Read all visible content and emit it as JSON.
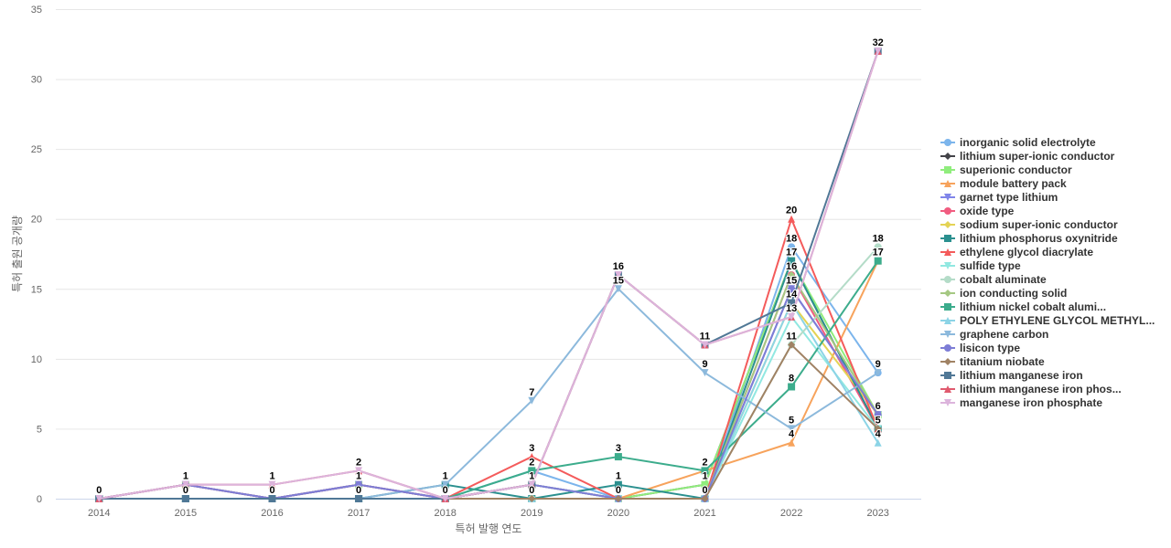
{
  "chart_data": {
    "type": "line",
    "title": "",
    "xlabel": "특허 발행 연도",
    "ylabel": "특허 출원 공개량",
    "ylim": [
      0,
      35
    ],
    "y_ticks": [
      0,
      5,
      10,
      15,
      20,
      25,
      30,
      35
    ],
    "grid": true,
    "legend_position": "right",
    "categories": [
      "2014",
      "2015",
      "2016",
      "2017",
      "2018",
      "2019",
      "2020",
      "2021",
      "2022",
      "2023"
    ],
    "series": [
      {
        "name": "inorganic solid electrolyte",
        "color": "#7cb5ec",
        "marker": "circle",
        "values": [
          0,
          1,
          0,
          1,
          0,
          2,
          0,
          0,
          18,
          9
        ]
      },
      {
        "name": "lithium super-ionic conductor",
        "color": "#434348",
        "marker": "diamond",
        "values": [
          0,
          1,
          0,
          1,
          0,
          1,
          0,
          1,
          17,
          5
        ]
      },
      {
        "name": "superionic conductor",
        "color": "#90ed7d",
        "marker": "square",
        "values": [
          0,
          1,
          0,
          1,
          0,
          1,
          0,
          1,
          17,
          6
        ]
      },
      {
        "name": "module battery pack",
        "color": "#f7a35c",
        "marker": "triangle",
        "values": [
          0,
          0,
          0,
          0,
          0,
          0,
          0,
          2,
          4,
          17
        ]
      },
      {
        "name": "garnet type lithium",
        "color": "#8085e9",
        "marker": "triangle-down",
        "values": [
          0,
          1,
          0,
          1,
          0,
          1,
          0,
          0,
          15,
          6
        ]
      },
      {
        "name": "oxide type",
        "color": "#f15c80",
        "marker": "circle",
        "values": [
          0,
          1,
          0,
          1,
          0,
          1,
          0,
          0,
          16,
          5
        ]
      },
      {
        "name": "sodium super-ionic conductor",
        "color": "#e4d354",
        "marker": "diamond",
        "values": [
          0,
          0,
          0,
          0,
          0,
          0,
          0,
          0,
          14,
          6
        ]
      },
      {
        "name": "lithium phosphorus oxynitride",
        "color": "#2b908f",
        "marker": "square",
        "values": [
          0,
          0,
          0,
          0,
          1,
          0,
          1,
          0,
          17,
          5
        ]
      },
      {
        "name": "ethylene glycol diacrylate",
        "color": "#f45b5b",
        "marker": "triangle",
        "values": [
          0,
          0,
          0,
          0,
          0,
          3,
          0,
          0,
          20,
          5
        ]
      },
      {
        "name": "sulfide type",
        "color": "#91e8e1",
        "marker": "triangle-down",
        "values": [
          0,
          0,
          0,
          0,
          0,
          1,
          0,
          0,
          13,
          5
        ]
      },
      {
        "name": "cobalt aluminate",
        "color": "#b4dcc8",
        "marker": "circle",
        "values": [
          0,
          0,
          0,
          0,
          0,
          0,
          0,
          0,
          11,
          18
        ]
      },
      {
        "name": "ion conducting solid",
        "color": "#a5c882",
        "marker": "diamond",
        "values": [
          0,
          0,
          0,
          0,
          0,
          0,
          0,
          0,
          16,
          6
        ]
      },
      {
        "name": "lithium nickel cobalt alumi...",
        "color": "#3cac8c",
        "marker": "square",
        "values": [
          0,
          0,
          0,
          0,
          0,
          2,
          3,
          2,
          8,
          17
        ]
      },
      {
        "name": "POLY ETHYLENE GLYCOL METHYL...",
        "color": "#8cd4e6",
        "marker": "triangle",
        "values": [
          0,
          0,
          0,
          0,
          0,
          0,
          0,
          0,
          14,
          4
        ]
      },
      {
        "name": "graphene carbon",
        "color": "#8cb9dc",
        "marker": "triangle-down",
        "values": [
          0,
          0,
          0,
          0,
          1,
          7,
          15,
          9,
          5,
          9
        ]
      },
      {
        "name": "lisicon type",
        "color": "#7d7dd6",
        "marker": "circle",
        "values": [
          0,
          1,
          0,
          1,
          0,
          1,
          0,
          0,
          15,
          6
        ]
      },
      {
        "name": "titanium niobate",
        "color": "#a08264",
        "marker": "diamond",
        "values": [
          0,
          0,
          0,
          0,
          0,
          0,
          0,
          0,
          11,
          5
        ]
      },
      {
        "name": "lithium manganese iron",
        "color": "#507896",
        "marker": "square",
        "values": [
          0,
          0,
          0,
          0,
          0,
          1,
          16,
          11,
          14,
          32
        ]
      },
      {
        "name": "lithium manganese iron phos...",
        "color": "#e05a6e",
        "marker": "triangle",
        "values": [
          0,
          1,
          1,
          2,
          0,
          1,
          16,
          11,
          13,
          32
        ]
      },
      {
        "name": "manganese iron phosphate",
        "color": "#dcb4dc",
        "marker": "triangle-down",
        "values": [
          0,
          1,
          1,
          2,
          0,
          1,
          16,
          11,
          13,
          32
        ]
      }
    ],
    "data_labels": [
      {
        "x": "2014",
        "y": 0,
        "text": "0"
      },
      {
        "x": "2015",
        "y": 1,
        "text": "1"
      },
      {
        "x": "2015",
        "y": 0,
        "text": "0"
      },
      {
        "x": "2016",
        "y": 1,
        "text": "1"
      },
      {
        "x": "2016",
        "y": 0,
        "text": "0"
      },
      {
        "x": "2017",
        "y": 2,
        "text": "2"
      },
      {
        "x": "2017",
        "y": 1,
        "text": "1"
      },
      {
        "x": "2017",
        "y": 0,
        "text": "0"
      },
      {
        "x": "2018",
        "y": 1,
        "text": "1"
      },
      {
        "x": "2018",
        "y": 0,
        "text": "0"
      },
      {
        "x": "2019",
        "y": 7,
        "text": "7"
      },
      {
        "x": "2019",
        "y": 3,
        "text": "3"
      },
      {
        "x": "2019",
        "y": 2,
        "text": "2"
      },
      {
        "x": "2019",
        "y": 1,
        "text": "1"
      },
      {
        "x": "2019",
        "y": 0,
        "text": "0"
      },
      {
        "x": "2020",
        "y": 16,
        "text": "16"
      },
      {
        "x": "2020",
        "y": 15,
        "text": "15"
      },
      {
        "x": "2020",
        "y": 3,
        "text": "3"
      },
      {
        "x": "2020",
        "y": 1,
        "text": "1"
      },
      {
        "x": "2020",
        "y": 0,
        "text": "0"
      },
      {
        "x": "2021",
        "y": 11,
        "text": "11"
      },
      {
        "x": "2021",
        "y": 9,
        "text": "9"
      },
      {
        "x": "2021",
        "y": 2,
        "text": "2"
      },
      {
        "x": "2021",
        "y": 1,
        "text": "1"
      },
      {
        "x": "2021",
        "y": 0,
        "text": "0"
      },
      {
        "x": "2022",
        "y": 20,
        "text": "20"
      },
      {
        "x": "2022",
        "y": 18,
        "text": "18"
      },
      {
        "x": "2022",
        "y": 17,
        "text": "17"
      },
      {
        "x": "2022",
        "y": 16,
        "text": "16"
      },
      {
        "x": "2022",
        "y": 15,
        "text": "15"
      },
      {
        "x": "2022",
        "y": 14,
        "text": "14"
      },
      {
        "x": "2022",
        "y": 13,
        "text": "13"
      },
      {
        "x": "2022",
        "y": 11,
        "text": "11"
      },
      {
        "x": "2022",
        "y": 8,
        "text": "8"
      },
      {
        "x": "2022",
        "y": 5,
        "text": "5"
      },
      {
        "x": "2022",
        "y": 4,
        "text": "4"
      },
      {
        "x": "2023",
        "y": 32,
        "text": "32"
      },
      {
        "x": "2023",
        "y": 18,
        "text": "18"
      },
      {
        "x": "2023",
        "y": 17,
        "text": "17"
      },
      {
        "x": "2023",
        "y": 9,
        "text": "9"
      },
      {
        "x": "2023",
        "y": 6,
        "text": "6"
      },
      {
        "x": "2023",
        "y": 5,
        "text": "5"
      },
      {
        "x": "2023",
        "y": 4,
        "text": "4"
      }
    ]
  }
}
